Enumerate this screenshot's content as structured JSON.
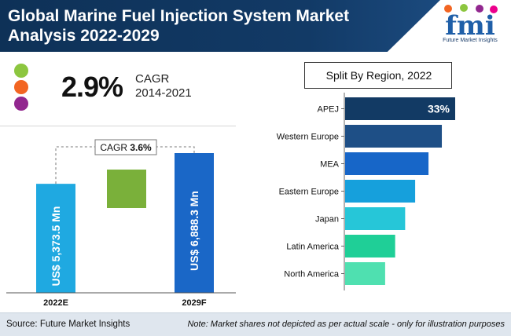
{
  "header": {
    "title": "Global Marine Fuel Injection System Market Analysis 2022-2029",
    "logo_text": "Future Market Insights",
    "logo_letters": "fmi"
  },
  "cagr_block": {
    "value": "2.9%",
    "label": "CAGR",
    "years": "2014-2021",
    "dot_colors": [
      "#8cc63f",
      "#f26522",
      "#92278f"
    ]
  },
  "left_chart": {
    "cagr_label": "CAGR",
    "cagr_value": "3.6%"
  },
  "right_chart": {
    "box_title": "Split By Region, 2022"
  },
  "chart_data": [
    {
      "type": "bar",
      "categories": [
        "2022E",
        "2029F"
      ],
      "values": [
        5373.5,
        6888.3
      ],
      "value_labels": [
        "US$ 5,373.5 Mn",
        "US$ 6,888.3 Mn"
      ],
      "colors": [
        "#1fa9e1",
        "#1a67c7"
      ],
      "bridge_color": "#7ab03a",
      "annotation": "CAGR 3.6%"
    },
    {
      "type": "bar",
      "orientation": "horizontal",
      "title": "Split By Region, 2022",
      "categories": [
        "APEJ",
        "Western Europe",
        "MEA",
        "Eastern Europe",
        "Japan",
        "Latin America",
        "North America"
      ],
      "values": [
        33,
        29,
        25,
        21,
        18,
        15,
        12
      ],
      "data_labels": [
        "33%",
        "",
        "",
        "",
        "",
        "",
        ""
      ],
      "colors": [
        "#123a64",
        "#1e4f86",
        "#1766c8",
        "#16a0dc",
        "#26c6d8",
        "#1fcf97",
        "#4fe0b0"
      ]
    }
  ],
  "footer": {
    "source": "Source: Future Market Insights",
    "note": "Note: Market shares not depicted as per actual scale - only for illustration purposes"
  }
}
